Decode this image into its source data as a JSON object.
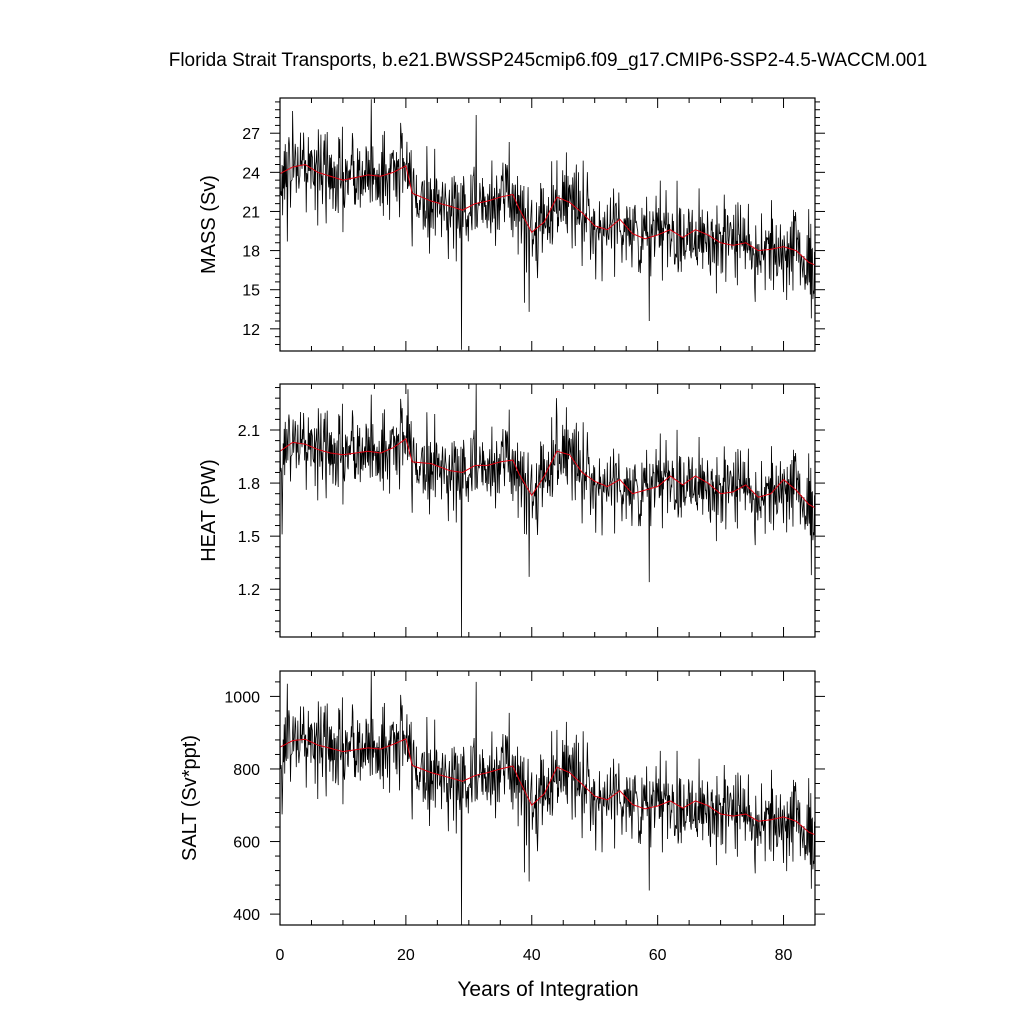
{
  "chart_data": {
    "type": "line",
    "title": "Florida Strait Transports, b.e21.BWSSP245cmip6.f09_g17.CMIP6-SSP2-4.5-WACCM.001",
    "xlabel": "Years of Integration",
    "xlim": [
      0,
      85
    ],
    "xticks": [
      0,
      20,
      40,
      60,
      80
    ],
    "legend": "none",
    "grid": false,
    "colors": {
      "raw": "#000000",
      "smoothed": "#e0000f"
    },
    "panels": [
      {
        "ylabel": "MASS (Sv)",
        "ylim": [
          10.3,
          29.7
        ],
        "yticks": [
          12,
          15,
          18,
          21,
          24,
          27
        ],
        "smoothed": [
          [
            0,
            23.9
          ],
          [
            2,
            24.4
          ],
          [
            4,
            24.6
          ],
          [
            6,
            24.0
          ],
          [
            8,
            23.7
          ],
          [
            10,
            23.4
          ],
          [
            12,
            23.6
          ],
          [
            14,
            23.8
          ],
          [
            16,
            23.7
          ],
          [
            18,
            24.0
          ],
          [
            20,
            24.5
          ],
          [
            21,
            22.4
          ],
          [
            24,
            21.8
          ],
          [
            27,
            21.4
          ],
          [
            29,
            21.1
          ],
          [
            31,
            21.6
          ],
          [
            33,
            21.8
          ],
          [
            35,
            22.1
          ],
          [
            37,
            22.3
          ],
          [
            38,
            21.2
          ],
          [
            40,
            19.4
          ],
          [
            42,
            20.2
          ],
          [
            44,
            22.1
          ],
          [
            46,
            21.7
          ],
          [
            48,
            20.9
          ],
          [
            50,
            19.9
          ],
          [
            52,
            19.6
          ],
          [
            54,
            20.4
          ],
          [
            56,
            19.3
          ],
          [
            58,
            18.9
          ],
          [
            60,
            19.2
          ],
          [
            62,
            19.6
          ],
          [
            64,
            19.0
          ],
          [
            66,
            19.6
          ],
          [
            68,
            19.2
          ],
          [
            70,
            18.6
          ],
          [
            72,
            18.4
          ],
          [
            74,
            18.6
          ],
          [
            76,
            18.0
          ],
          [
            78,
            18.1
          ],
          [
            80,
            18.3
          ],
          [
            82,
            18.0
          ],
          [
            84,
            17.1
          ],
          [
            85,
            16.9
          ]
        ],
        "noise_sd": 1.7,
        "spikes": [
          [
            2.0,
            28.7
          ],
          [
            1.2,
            18.7
          ],
          [
            14.5,
            29.6
          ],
          [
            28.8,
            10.4
          ],
          [
            31.2,
            28.4
          ],
          [
            38.8,
            14.0
          ],
          [
            39.6,
            13.3
          ],
          [
            58.7,
            12.6
          ],
          [
            84.4,
            12.8
          ],
          [
            85,
            14.5
          ]
        ]
      },
      {
        "ylabel": "HEAT (PW)",
        "ylim": [
          0.93,
          2.36
        ],
        "yticks": [
          1.2,
          1.5,
          1.8,
          2.1
        ],
        "smoothed": [
          [
            0,
            1.98
          ],
          [
            2,
            2.03
          ],
          [
            4,
            2.02
          ],
          [
            6,
            1.99
          ],
          [
            8,
            1.97
          ],
          [
            10,
            1.96
          ],
          [
            12,
            1.97
          ],
          [
            14,
            1.98
          ],
          [
            16,
            1.97
          ],
          [
            18,
            2.0
          ],
          [
            20,
            2.05
          ],
          [
            21,
            1.92
          ],
          [
            24,
            1.91
          ],
          [
            27,
            1.87
          ],
          [
            29,
            1.86
          ],
          [
            31,
            1.9
          ],
          [
            33,
            1.9
          ],
          [
            35,
            1.92
          ],
          [
            37,
            1.93
          ],
          [
            38,
            1.85
          ],
          [
            40,
            1.73
          ],
          [
            42,
            1.84
          ],
          [
            44,
            1.98
          ],
          [
            46,
            1.96
          ],
          [
            48,
            1.86
          ],
          [
            50,
            1.81
          ],
          [
            52,
            1.78
          ],
          [
            54,
            1.82
          ],
          [
            56,
            1.74
          ],
          [
            58,
            1.76
          ],
          [
            60,
            1.78
          ],
          [
            62,
            1.84
          ],
          [
            64,
            1.79
          ],
          [
            66,
            1.84
          ],
          [
            68,
            1.8
          ],
          [
            70,
            1.74
          ],
          [
            72,
            1.75
          ],
          [
            74,
            1.79
          ],
          [
            76,
            1.72
          ],
          [
            78,
            1.74
          ],
          [
            80,
            1.82
          ],
          [
            82,
            1.76
          ],
          [
            84,
            1.68
          ],
          [
            85,
            1.66
          ]
        ],
        "noise_sd": 0.12,
        "spikes": [
          [
            14.5,
            2.3
          ],
          [
            20.3,
            2.33
          ],
          [
            28.8,
            0.93
          ],
          [
            31.2,
            2.36
          ],
          [
            39.6,
            1.27
          ],
          [
            43.9,
            2.28
          ],
          [
            58.7,
            1.24
          ],
          [
            84.4,
            1.28
          ],
          [
            85,
            1.42
          ],
          [
            0.3,
            1.51
          ]
        ]
      },
      {
        "ylabel": "SALT (Sv*ppt)",
        "ylim": [
          370,
          1070
        ],
        "yticks": [
          400,
          600,
          800,
          1000
        ],
        "smoothed": [
          [
            0,
            860
          ],
          [
            2,
            878
          ],
          [
            4,
            882
          ],
          [
            6,
            866
          ],
          [
            8,
            857
          ],
          [
            10,
            848
          ],
          [
            12,
            853
          ],
          [
            14,
            858
          ],
          [
            16,
            855
          ],
          [
            18,
            868
          ],
          [
            20,
            883
          ],
          [
            21,
            810
          ],
          [
            24,
            790
          ],
          [
            27,
            776
          ],
          [
            29,
            766
          ],
          [
            31,
            782
          ],
          [
            33,
            790
          ],
          [
            35,
            800
          ],
          [
            37,
            808
          ],
          [
            38,
            770
          ],
          [
            40,
            700
          ],
          [
            42,
            732
          ],
          [
            44,
            805
          ],
          [
            46,
            790
          ],
          [
            48,
            758
          ],
          [
            50,
            725
          ],
          [
            52,
            715
          ],
          [
            54,
            740
          ],
          [
            56,
            702
          ],
          [
            58,
            690
          ],
          [
            60,
            698
          ],
          [
            62,
            712
          ],
          [
            64,
            692
          ],
          [
            66,
            712
          ],
          [
            68,
            699
          ],
          [
            70,
            676
          ],
          [
            72,
            670
          ],
          [
            74,
            676
          ],
          [
            76,
            656
          ],
          [
            78,
            660
          ],
          [
            80,
            668
          ],
          [
            82,
            656
          ],
          [
            84,
            626
          ],
          [
            85,
            619
          ]
        ],
        "noise_sd": 62,
        "spikes": [
          [
            1.2,
            1035
          ],
          [
            14.5,
            1070
          ],
          [
            28.8,
            370
          ],
          [
            31.2,
            1040
          ],
          [
            38.8,
            515
          ],
          [
            39.6,
            490
          ],
          [
            58.7,
            465
          ],
          [
            84.4,
            470
          ],
          [
            85,
            540
          ],
          [
            0.3,
            675
          ]
        ]
      }
    ]
  }
}
